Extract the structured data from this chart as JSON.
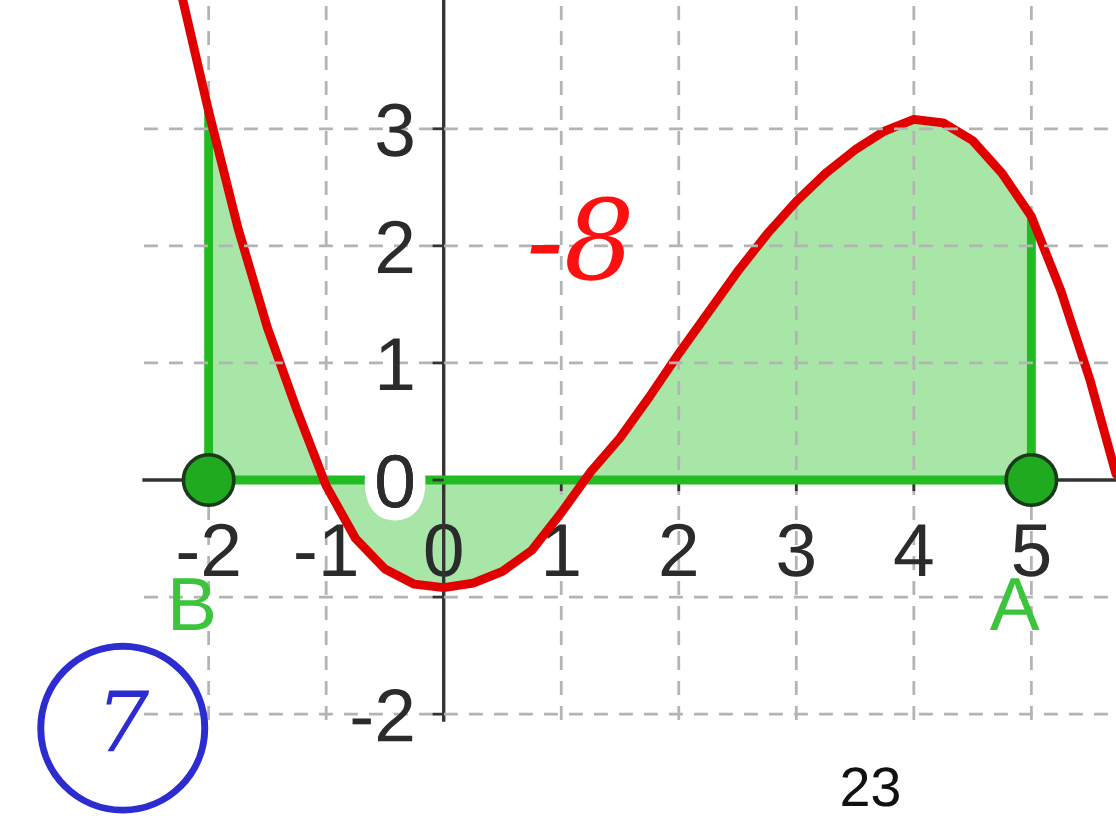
{
  "chart_data": {
    "type": "line",
    "series": [
      {
        "type": "area",
        "color": "#a8e6a8",
        "x": [
          -2,
          -1.75,
          -1.5,
          -1.25,
          -1,
          -0.75,
          -0.5,
          -0.25,
          0,
          0.25,
          0.5,
          0.75,
          1,
          1.25,
          1.5,
          1.75,
          2,
          2.25,
          2.5,
          2.75,
          3,
          3.25,
          3.5,
          3.75,
          4,
          4.25,
          4.5,
          4.75,
          5
        ],
        "values": [
          3.15,
          2.15,
          1.3,
          0.6,
          -0.05,
          -0.5,
          -0.76,
          -0.89,
          -0.92,
          -0.88,
          -0.78,
          -0.6,
          -0.28,
          0.07,
          0.36,
          0.71,
          1.08,
          1.43,
          1.78,
          2.1,
          2.38,
          2.62,
          2.82,
          2.98,
          3.08,
          3.05,
          2.9,
          2.62,
          2.25
        ]
      },
      {
        "color": "#22bb22",
        "x": [
          -2,
          -2,
          5,
          5
        ],
        "values": [
          3.15,
          0,
          0,
          2.25
        ]
      },
      {
        "color": "#e00000",
        "x": [
          -2.22,
          -2,
          -1.75,
          -1.5,
          -1.25,
          -1,
          -0.75,
          -0.5,
          -0.25,
          0,
          0.25,
          0.5,
          0.75,
          1,
          1.25,
          1.5,
          1.75,
          2,
          2.25,
          2.5,
          2.75,
          3,
          3.25,
          3.5,
          3.75,
          4,
          4.25,
          4.5,
          4.75,
          5,
          5.25,
          5.5,
          5.72
        ],
        "values": [
          4.1,
          3.15,
          2.15,
          1.3,
          0.6,
          -0.05,
          -0.5,
          -0.76,
          -0.89,
          -0.92,
          -0.88,
          -0.78,
          -0.6,
          -0.28,
          0.07,
          0.36,
          0.71,
          1.08,
          1.43,
          1.78,
          2.1,
          2.38,
          2.62,
          2.82,
          2.98,
          3.08,
          3.05,
          2.9,
          2.62,
          2.25,
          1.62,
          0.85,
          0.05
        ]
      },
      {
        "type": "scatter",
        "color": "#1faa1f",
        "marker": "circle",
        "x": [
          -2,
          5
        ],
        "values": [
          0,
          0
        ]
      }
    ],
    "xlim": [
      -2.55,
      5.72
    ],
    "ylim": [
      -2.05,
      4.1
    ],
    "xticks": [
      -2,
      -1,
      0,
      1,
      2,
      3,
      4,
      5
    ],
    "yticks": [
      -2,
      {
        "value": -1,
        "label": null
      },
      0,
      1,
      2,
      3
    ],
    "grid": true,
    "annotations": [
      {
        "text": "B",
        "x": -2,
        "y": 0
      },
      {
        "text": "A",
        "x": 5,
        "y": 0
      },
      "-8",
      "7",
      "23"
    ]
  }
}
